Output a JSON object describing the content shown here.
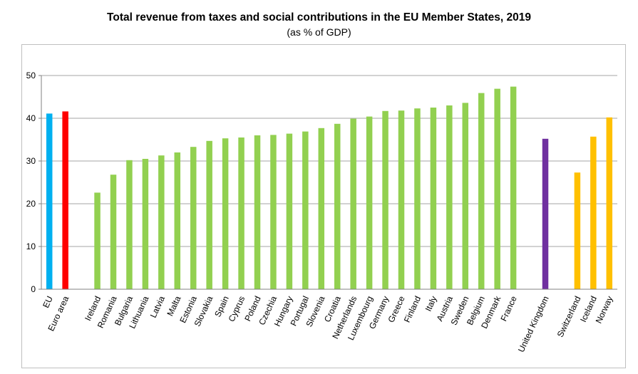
{
  "chart_data": {
    "type": "bar",
    "title": "Total revenue from taxes and social contributions in the EU Member States, 2019",
    "subtitle": "(as % of GDP)",
    "ylim": [
      0,
      50
    ],
    "yticks": [
      0,
      10,
      20,
      30,
      40,
      50
    ],
    "grid": true,
    "legend": "none",
    "categories": [
      "EU",
      "Euro area",
      "",
      "Ireland",
      "Romania",
      "Bulgaria",
      "Lithuania",
      "Latvia",
      "Malta",
      "Estonia",
      "Slovakia",
      "Spain",
      "Cyprus",
      "Poland",
      "Czechia",
      "Hungary",
      "Portugal",
      "Slovenia",
      "Croatia",
      "Netherlands",
      "Luxembourg",
      "Germany",
      "Greece",
      "Finland",
      "Italy",
      "Austria",
      "Sweden",
      "Belgium",
      "Denmark",
      "France",
      "",
      "United Kingdom",
      "",
      "Switzerland",
      "Iceland",
      "Norway"
    ],
    "values": [
      41.1,
      41.6,
      null,
      22.6,
      26.8,
      30.2,
      30.5,
      31.3,
      32.0,
      33.3,
      34.7,
      35.3,
      35.5,
      36.0,
      36.1,
      36.4,
      36.9,
      37.7,
      38.7,
      39.9,
      40.4,
      41.7,
      41.8,
      42.3,
      42.5,
      43.0,
      43.6,
      45.9,
      46.9,
      47.4,
      null,
      35.2,
      null,
      27.3,
      35.7,
      40.2
    ],
    "bar_colors": [
      "#00b0f0",
      "#ff0000",
      "",
      "#92d050",
      "#92d050",
      "#92d050",
      "#92d050",
      "#92d050",
      "#92d050",
      "#92d050",
      "#92d050",
      "#92d050",
      "#92d050",
      "#92d050",
      "#92d050",
      "#92d050",
      "#92d050",
      "#92d050",
      "#92d050",
      "#92d050",
      "#92d050",
      "#92d050",
      "#92d050",
      "#92d050",
      "#92d050",
      "#92d050",
      "#92d050",
      "#92d050",
      "#92d050",
      "#92d050",
      "",
      "#7030a0",
      "",
      "#ffc000",
      "#ffc000",
      "#ffc000"
    ],
    "gridline_color": "#a6a6a6",
    "axis_color": "#808080"
  }
}
